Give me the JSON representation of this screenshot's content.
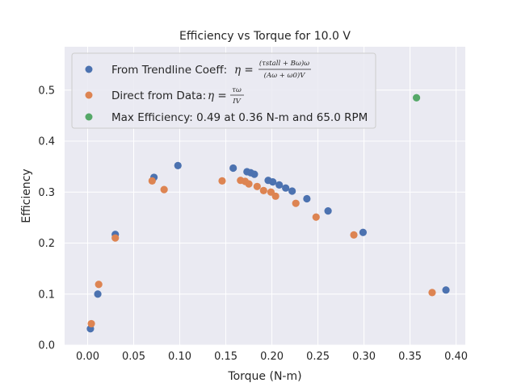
{
  "chart_data": {
    "type": "scatter",
    "title": "Efficiency vs Torque for 10.0 V",
    "xlabel": "Torque (N-m)",
    "ylabel": "Efficiency",
    "xlim": [
      -0.025,
      0.41
    ],
    "ylim": [
      0.0,
      0.585
    ],
    "grid": true,
    "legend_position": "top-left",
    "x_ticks": [
      "0.00",
      "0.05",
      "0.10",
      "0.15",
      "0.20",
      "0.25",
      "0.30",
      "0.35",
      "0.40"
    ],
    "x_tick_values": [
      0.0,
      0.05,
      0.1,
      0.15,
      0.2,
      0.25,
      0.3,
      0.35,
      0.4
    ],
    "y_ticks": [
      "0.0",
      "0.1",
      "0.2",
      "0.3",
      "0.4",
      "0.5"
    ],
    "y_tick_values": [
      0.0,
      0.1,
      0.2,
      0.3,
      0.4,
      0.5
    ],
    "colors": {
      "background": "#eaeaf2",
      "grid": "#ffffff",
      "series1": "#4c72b0",
      "series2": "#dd8452",
      "series3": "#55a868"
    },
    "series": [
      {
        "name": "From Trendline Coeff:",
        "formula_lhs": "η =",
        "formula_numerator": "(τstall + Bω)ω",
        "formula_denominator": "(Aω + ω0)V",
        "color": "#4c72b0",
        "x": [
          0.003,
          0.011,
          0.03,
          0.072,
          0.098,
          0.158,
          0.173,
          0.177,
          0.181,
          0.196,
          0.201,
          0.208,
          0.215,
          0.222,
          0.238,
          0.261,
          0.299,
          0.389
        ],
        "y": [
          0.032,
          0.1,
          0.217,
          0.329,
          0.352,
          0.347,
          0.34,
          0.338,
          0.335,
          0.323,
          0.32,
          0.314,
          0.308,
          0.302,
          0.287,
          0.263,
          0.221,
          0.108
        ]
      },
      {
        "name": "Direct from Data:",
        "formula_lhs": "η =",
        "formula_numerator": "τω",
        "formula_denominator": "IV",
        "color": "#dd8452",
        "x": [
          0.004,
          0.012,
          0.03,
          0.07,
          0.083,
          0.146,
          0.166,
          0.171,
          0.175,
          0.184,
          0.191,
          0.199,
          0.204,
          0.226,
          0.248,
          0.289,
          0.374
        ],
        "y": [
          0.042,
          0.119,
          0.21,
          0.322,
          0.305,
          0.322,
          0.323,
          0.321,
          0.316,
          0.311,
          0.303,
          0.3,
          0.292,
          0.278,
          0.251,
          0.216,
          0.103
        ]
      },
      {
        "name": "Max Efficiency: 0.49 at 0.36 N-m and 65.0 RPM",
        "color": "#55a868",
        "x": [
          0.357
        ],
        "y": [
          0.485
        ]
      }
    ]
  }
}
